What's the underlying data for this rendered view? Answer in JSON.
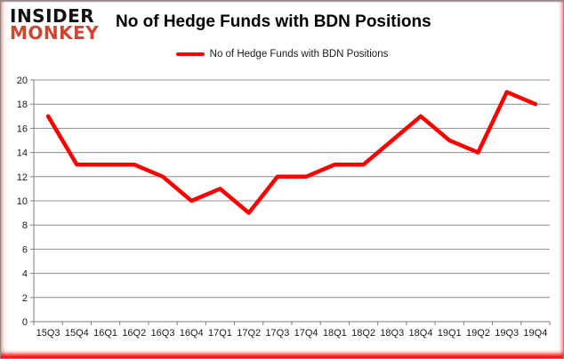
{
  "brand": {
    "line1": "INSIDER",
    "line2": "MONKEY",
    "monkey_color": "#cf4530"
  },
  "header": {
    "title": "No of Hedge Funds with BDN Positions"
  },
  "legend": {
    "label": "No of Hedge Funds with BDN Positions",
    "marker_color": "#ff0000"
  },
  "chart_data": {
    "type": "line",
    "title": "No of Hedge Funds with BDN Positions",
    "categories": [
      "15Q3",
      "15Q4",
      "16Q1",
      "16Q2",
      "16Q3",
      "16Q4",
      "17Q1",
      "17Q2",
      "17Q3",
      "17Q4",
      "18Q1",
      "18Q2",
      "18Q3",
      "18Q4",
      "19Q1",
      "19Q2",
      "19Q3",
      "19Q4"
    ],
    "series": [
      {
        "name": "No of Hedge Funds with BDN Positions",
        "color": "#ff0000",
        "values": [
          17,
          13,
          13,
          13,
          12,
          10,
          11,
          9,
          12,
          12,
          13,
          13,
          15,
          17,
          15,
          14,
          19,
          18
        ]
      }
    ],
    "xlabel": "",
    "ylabel": "",
    "ylim": [
      0,
      20
    ],
    "ytick_step": 2,
    "yticks": [
      0,
      2,
      4,
      6,
      8,
      10,
      12,
      14,
      16,
      18,
      20
    ],
    "grid": true,
    "legend_position": "top-center"
  },
  "colors": {
    "line": "#ff0000",
    "grid": "#8c8c8c",
    "axis": "#7f7f7f",
    "text": "#1a1a1a",
    "frame_glow": "#ff0000"
  }
}
